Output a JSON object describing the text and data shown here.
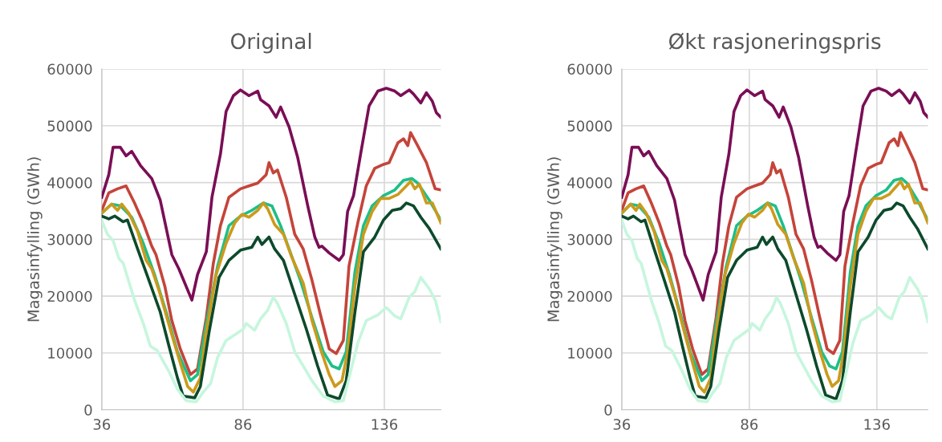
{
  "chart_data": [
    {
      "type": "line",
      "title": "Original",
      "ylabel": "Magasinfylling (GWh)",
      "xlim": [
        36,
        156
      ],
      "xticks": [
        36,
        86,
        136
      ],
      "ylim": [
        0,
        60000
      ],
      "yticks": [
        0,
        10000,
        20000,
        30000,
        40000,
        50000,
        60000
      ],
      "grid": true,
      "marker": "none",
      "line_style": "solid",
      "series": [
        {
          "color": "#7a0e55",
          "x": [
            36,
            38.5,
            40,
            42.6,
            44.6,
            46.6,
            49.7,
            53.7,
            56.7,
            60.8,
            63.3,
            67.9,
            69.9,
            73,
            75,
            78,
            80,
            82.6,
            85.1,
            88.1,
            91.2,
            92.2,
            95.2,
            97.7,
            99.3,
            102.3,
            105.3,
            108.9,
            111.4,
            112.9,
            113.9,
            116.5,
            120,
            121.5,
            123,
            125.1,
            127.6,
            130.6,
            133.7,
            136.7,
            139.7,
            141.8,
            144.8,
            146.3,
            148.9,
            150.9,
            153,
            154.4,
            156
          ],
          "values": [
            37400,
            41400,
            46200,
            46200,
            44700,
            45500,
            43000,
            40700,
            36900,
            27300,
            24800,
            19300,
            23800,
            27800,
            37400,
            45000,
            52500,
            55300,
            56300,
            55300,
            56100,
            54600,
            53500,
            51500,
            53300,
            49800,
            44500,
            35900,
            30400,
            28600,
            28800,
            27600,
            26300,
            27300,
            34900,
            37700,
            45000,
            53500,
            56100,
            56600,
            56100,
            55300,
            56300,
            55600,
            54000,
            55800,
            54300,
            52300,
            51500
          ]
        },
        {
          "color": "#c5443a",
          "x": [
            36,
            38.5,
            41.6,
            44.6,
            47.6,
            50.7,
            53.7,
            55.2,
            58.3,
            60.8,
            63.8,
            67.4,
            69.9,
            73,
            75.5,
            78,
            81,
            85.1,
            88.1,
            91.2,
            94.2,
            95.2,
            96.7,
            98.2,
            101.3,
            104.3,
            107.3,
            110.4,
            113.4,
            116.5,
            119,
            121.5,
            123.5,
            126.6,
            129.6,
            132.6,
            135.7,
            137.7,
            140.8,
            142.8,
            144.3,
            145.3,
            147.8,
            150.9,
            154,
            156
          ],
          "values": [
            35100,
            38200,
            38900,
            39400,
            36400,
            32900,
            28800,
            27300,
            21800,
            15700,
            10700,
            6200,
            7200,
            16200,
            25800,
            32400,
            37400,
            38900,
            39400,
            39900,
            41400,
            43500,
            41700,
            42200,
            37400,
            30900,
            28300,
            22800,
            16700,
            10700,
            9900,
            12200,
            25300,
            32900,
            39400,
            42500,
            43200,
            43500,
            47000,
            47700,
            46500,
            48800,
            46500,
            43500,
            38900,
            38700
          ]
        },
        {
          "color": "#1dbf88",
          "x": [
            36,
            39.5,
            42.6,
            46.6,
            50.7,
            54.7,
            58.8,
            62.8,
            67.4,
            69.9,
            73,
            77,
            81,
            85.1,
            89.1,
            93.2,
            96.2,
            99.3,
            102.3,
            106.3,
            110.4,
            114.4,
            117.5,
            120,
            122.5,
            125.6,
            128.6,
            131.7,
            135.7,
            139.7,
            142.8,
            145.8,
            147.8,
            151.9,
            156
          ],
          "values": [
            34600,
            36200,
            35900,
            33900,
            29300,
            23800,
            17200,
            10200,
            5100,
            6200,
            15200,
            25300,
            32400,
            34100,
            35100,
            36400,
            35900,
            32400,
            28300,
            22800,
            16200,
            10200,
            7700,
            7200,
            10200,
            24300,
            32400,
            35900,
            37700,
            38700,
            40400,
            40700,
            39900,
            36900,
            33400
          ]
        },
        {
          "color": "#cc9a1c",
          "x": [
            36,
            39.5,
            41.6,
            43.1,
            45.6,
            48.7,
            51.7,
            53.7,
            56.7,
            60.8,
            63.8,
            66.4,
            68.4,
            70.9,
            73,
            76.5,
            80,
            83.1,
            85.6,
            88.1,
            91.2,
            93.2,
            94.7,
            97.2,
            100.3,
            103.3,
            107.3,
            110.4,
            113.4,
            116.5,
            118.5,
            121,
            123,
            125.6,
            128.6,
            131.7,
            134.7,
            137.7,
            140.8,
            143.8,
            145.3,
            146.8,
            148.4,
            150.9,
            153,
            156
          ],
          "values": [
            34600,
            36200,
            35100,
            36200,
            34600,
            31400,
            26300,
            24800,
            20300,
            13200,
            8200,
            4100,
            3100,
            5600,
            13700,
            23800,
            29300,
            32900,
            34400,
            33900,
            35100,
            36400,
            35400,
            32600,
            30900,
            26800,
            22300,
            15700,
            10700,
            6200,
            4100,
            5100,
            10200,
            21800,
            30900,
            34900,
            37200,
            37200,
            37900,
            39400,
            40200,
            38900,
            39700,
            36400,
            36400,
            32900
          ]
        },
        {
          "color": "#0c4a2c",
          "x": [
            36,
            38.5,
            40.6,
            43.6,
            45.1,
            48.7,
            52.7,
            56.7,
            59.8,
            62.8,
            64.8,
            68.9,
            70.9,
            74,
            77.5,
            81,
            85.1,
            89.1,
            91.2,
            92.7,
            95.2,
            97.2,
            100.3,
            104.3,
            108.4,
            112.4,
            115.9,
            120,
            122.5,
            125.6,
            128.6,
            132.6,
            135.7,
            138.8,
            141.8,
            143.8,
            146.3,
            148.9,
            151.9,
            156
          ],
          "values": [
            34100,
            33600,
            34100,
            33100,
            33400,
            28300,
            22800,
            17200,
            11200,
            5600,
            2400,
            2100,
            4100,
            13700,
            23300,
            26300,
            28100,
            28600,
            30400,
            29100,
            30400,
            28300,
            26300,
            20300,
            14200,
            7700,
            2600,
            1900,
            5100,
            17200,
            27800,
            30400,
            33400,
            35100,
            35400,
            36400,
            35900,
            33900,
            31900,
            28300
          ]
        },
        {
          "color": "#c6f6de",
          "x": [
            36,
            38,
            40,
            42.1,
            43.6,
            47.6,
            50.7,
            53.2,
            55.7,
            59.8,
            62.8,
            65.9,
            69.4,
            71.9,
            74.5,
            77,
            80,
            83.1,
            86.1,
            87.1,
            90.1,
            92.2,
            94.7,
            96.7,
            98.2,
            101.3,
            104.3,
            107.3,
            110.4,
            114.4,
            118.5,
            121.5,
            123.5,
            126.6,
            129.6,
            133.7,
            136.7,
            139.7,
            141.8,
            144.8,
            146.8,
            148.9,
            151.9,
            154,
            156
          ],
          "values": [
            33400,
            30900,
            29800,
            26600,
            25800,
            19300,
            15200,
            11200,
            10400,
            6700,
            3600,
            1600,
            1400,
            3100,
            4600,
            9200,
            12200,
            13200,
            14200,
            15200,
            14000,
            16000,
            17500,
            19800,
            18700,
            15200,
            10200,
            7700,
            5100,
            2400,
            1400,
            1600,
            5600,
            11700,
            15700,
            16700,
            18000,
            16500,
            16000,
            19800,
            20800,
            23300,
            21300,
            19300,
            15500
          ]
        }
      ]
    },
    {
      "type": "line",
      "title": "Økt rasjoneringspris",
      "ylabel": "Magasinfylling (GWh)",
      "xlim": [
        36,
        156
      ],
      "xticks": [
        36,
        86,
        136
      ],
      "ylim": [
        0,
        60000
      ],
      "yticks": [
        0,
        10000,
        20000,
        30000,
        40000,
        50000,
        60000
      ],
      "grid": true,
      "marker": "none",
      "line_style": "solid",
      "series": [
        {
          "color": "#7a0e55",
          "x": [
            36,
            38.5,
            40,
            42.6,
            44.6,
            46.6,
            49.7,
            53.7,
            56.7,
            60.8,
            63.3,
            67.9,
            69.9,
            73,
            75,
            78,
            80,
            82.6,
            85.1,
            88.1,
            91.2,
            92.2,
            95.2,
            97.7,
            99.3,
            102.3,
            105.3,
            108.9,
            111.4,
            112.9,
            113.9,
            116.5,
            120,
            121.5,
            123,
            125.1,
            127.6,
            130.6,
            133.7,
            136.7,
            139.7,
            141.8,
            144.8,
            146.3,
            148.9,
            150.9,
            153,
            154.4,
            156
          ],
          "values": [
            37400,
            41400,
            46200,
            46200,
            44700,
            45500,
            43000,
            40700,
            36900,
            27300,
            24800,
            19300,
            23800,
            27800,
            37400,
            45000,
            52500,
            55300,
            56300,
            55300,
            56100,
            54600,
            53500,
            51500,
            53300,
            49800,
            44500,
            35900,
            30400,
            28600,
            28800,
            27600,
            26300,
            27300,
            34900,
            37700,
            45000,
            53500,
            56100,
            56600,
            56100,
            55300,
            56300,
            55600,
            54000,
            55800,
            54300,
            52300,
            51500
          ]
        },
        {
          "color": "#c5443a",
          "x": [
            36,
            38.5,
            41.6,
            44.6,
            47.6,
            50.7,
            53.7,
            55.2,
            58.3,
            60.8,
            63.8,
            67.4,
            69.9,
            73,
            75.5,
            78,
            81,
            85.1,
            88.1,
            91.2,
            94.2,
            95.2,
            96.7,
            98.2,
            101.3,
            104.3,
            107.3,
            110.4,
            113.4,
            116.5,
            119,
            121.5,
            123.5,
            126.6,
            129.6,
            132.6,
            135.7,
            137.7,
            140.8,
            142.8,
            144.3,
            145.3,
            147.8,
            150.9,
            154,
            156
          ],
          "values": [
            35100,
            38200,
            38900,
            39400,
            36400,
            32900,
            28800,
            27300,
            21800,
            15700,
            10700,
            6200,
            7200,
            16200,
            25800,
            32400,
            37400,
            38900,
            39400,
            39900,
            41400,
            43500,
            41700,
            42200,
            37400,
            30900,
            28300,
            22800,
            16700,
            10700,
            9900,
            12200,
            25300,
            32900,
            39400,
            42500,
            43200,
            43500,
            47000,
            47700,
            46500,
            48800,
            46500,
            43500,
            38900,
            38700
          ]
        },
        {
          "color": "#1dbf88",
          "x": [
            36,
            39.5,
            42.6,
            46.6,
            50.7,
            54.7,
            58.8,
            62.8,
            67.4,
            69.9,
            73,
            77,
            81,
            85.1,
            89.1,
            93.2,
            96.2,
            99.3,
            102.3,
            106.3,
            110.4,
            114.4,
            117.5,
            120,
            122.5,
            125.6,
            128.6,
            131.7,
            135.7,
            139.7,
            142.8,
            145.8,
            147.8,
            151.9,
            156
          ],
          "values": [
            34600,
            36200,
            35900,
            33900,
            29300,
            23800,
            17200,
            10200,
            5100,
            6200,
            15200,
            25300,
            32400,
            34100,
            35100,
            36400,
            35900,
            32400,
            28300,
            22800,
            16200,
            10200,
            7700,
            7200,
            10200,
            24300,
            32400,
            35900,
            37700,
            38700,
            40400,
            40700,
            39900,
            36900,
            33400
          ]
        },
        {
          "color": "#cc9a1c",
          "x": [
            36,
            39.5,
            41.6,
            43.1,
            45.6,
            48.7,
            51.7,
            53.7,
            56.7,
            60.8,
            63.8,
            66.4,
            68.4,
            70.9,
            73,
            76.5,
            80,
            83.1,
            85.6,
            88.1,
            91.2,
            93.2,
            94.7,
            97.2,
            100.3,
            103.3,
            107.3,
            110.4,
            113.4,
            116.5,
            118.5,
            121,
            123,
            125.6,
            128.6,
            131.7,
            134.7,
            137.7,
            140.8,
            143.8,
            145.3,
            146.8,
            148.4,
            150.9,
            153,
            156
          ],
          "values": [
            34600,
            36200,
            35100,
            36200,
            34600,
            31400,
            26300,
            24800,
            20300,
            13200,
            8200,
            4100,
            3100,
            5600,
            13700,
            23800,
            29300,
            32900,
            34400,
            33900,
            35100,
            36400,
            35400,
            32600,
            30900,
            26800,
            22300,
            15700,
            10700,
            6200,
            4100,
            5100,
            10200,
            21800,
            30900,
            34900,
            37200,
            37200,
            37900,
            39400,
            40200,
            38900,
            39700,
            36400,
            36400,
            32900
          ]
        },
        {
          "color": "#0c4a2c",
          "x": [
            36,
            38.5,
            40.6,
            43.6,
            45.1,
            48.7,
            52.7,
            56.7,
            59.8,
            62.8,
            64.8,
            68.9,
            70.9,
            74,
            77.5,
            81,
            85.1,
            89.1,
            91.2,
            92.7,
            95.2,
            97.2,
            100.3,
            104.3,
            108.4,
            112.4,
            115.9,
            120,
            122.5,
            125.6,
            128.6,
            132.6,
            135.7,
            138.8,
            141.8,
            143.8,
            146.3,
            148.9,
            151.9,
            156
          ],
          "values": [
            34100,
            33600,
            34100,
            33100,
            33400,
            28300,
            22800,
            17200,
            11200,
            5600,
            2400,
            2100,
            4100,
            13700,
            23300,
            26300,
            28100,
            28600,
            30400,
            29100,
            30400,
            28300,
            26300,
            20300,
            14200,
            7700,
            2600,
            1900,
            5100,
            17200,
            27800,
            30400,
            33400,
            35100,
            35400,
            36400,
            35900,
            33900,
            31900,
            28300
          ]
        },
        {
          "color": "#c6f6de",
          "x": [
            36,
            38,
            40,
            42.1,
            43.6,
            47.6,
            50.7,
            53.2,
            55.7,
            59.8,
            62.8,
            65.9,
            69.4,
            71.9,
            74.5,
            77,
            80,
            83.1,
            86.1,
            87.1,
            90.1,
            92.2,
            94.7,
            96.7,
            98.2,
            101.3,
            104.3,
            107.3,
            110.4,
            114.4,
            118.5,
            121.5,
            123.5,
            126.6,
            129.6,
            133.7,
            136.7,
            139.7,
            141.8,
            144.8,
            146.8,
            148.9,
            151.9,
            154,
            156
          ],
          "values": [
            33400,
            30900,
            29800,
            26600,
            25800,
            19300,
            15200,
            11200,
            10400,
            6700,
            3600,
            1600,
            1400,
            3100,
            4600,
            9200,
            12200,
            13200,
            14200,
            15200,
            14000,
            16000,
            17500,
            19800,
            18700,
            15200,
            10200,
            7700,
            5100,
            2400,
            1400,
            1600,
            5600,
            11700,
            15700,
            16700,
            18000,
            16500,
            16000,
            19800,
            20800,
            23300,
            21300,
            19300,
            15500
          ]
        }
      ]
    }
  ]
}
